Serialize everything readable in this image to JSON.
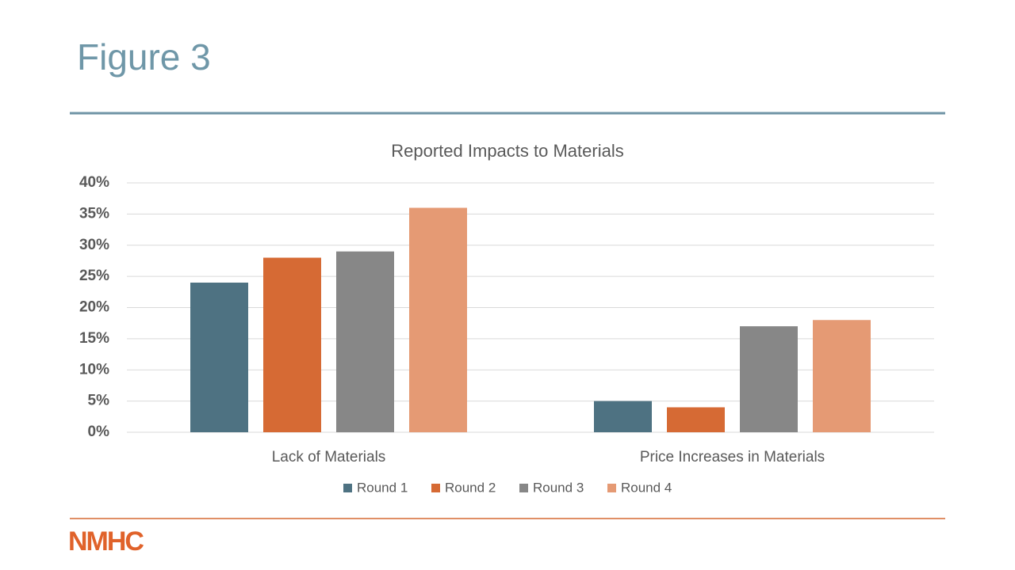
{
  "title": "Figure 3",
  "logo": "NMHC",
  "chart_data": {
    "type": "bar",
    "title": "Reported Impacts to Materials",
    "categories": [
      "Lack of Materials",
      "Price Increases in Materials"
    ],
    "series": [
      {
        "name": "Round 1",
        "color": "#4e7282",
        "values": [
          24,
          5
        ]
      },
      {
        "name": "Round 2",
        "color": "#d66a34",
        "values": [
          28,
          4
        ]
      },
      {
        "name": "Round 3",
        "color": "#878787",
        "values": [
          29,
          17
        ]
      },
      {
        "name": "Round 4",
        "color": "#e59a74",
        "values": [
          36,
          18
        ]
      }
    ],
    "ylim": [
      0,
      40
    ],
    "yticks": [
      {
        "value": 0,
        "label": "0%"
      },
      {
        "value": 5,
        "label": "5%"
      },
      {
        "value": 10,
        "label": "10%"
      },
      {
        "value": 15,
        "label": "15%"
      },
      {
        "value": 20,
        "label": "20%"
      },
      {
        "value": 25,
        "label": "25%"
      },
      {
        "value": 30,
        "label": "30%"
      },
      {
        "value": 35,
        "label": "35%"
      },
      {
        "value": 40,
        "label": "40%"
      }
    ],
    "grid": true,
    "legend": "bottom"
  }
}
